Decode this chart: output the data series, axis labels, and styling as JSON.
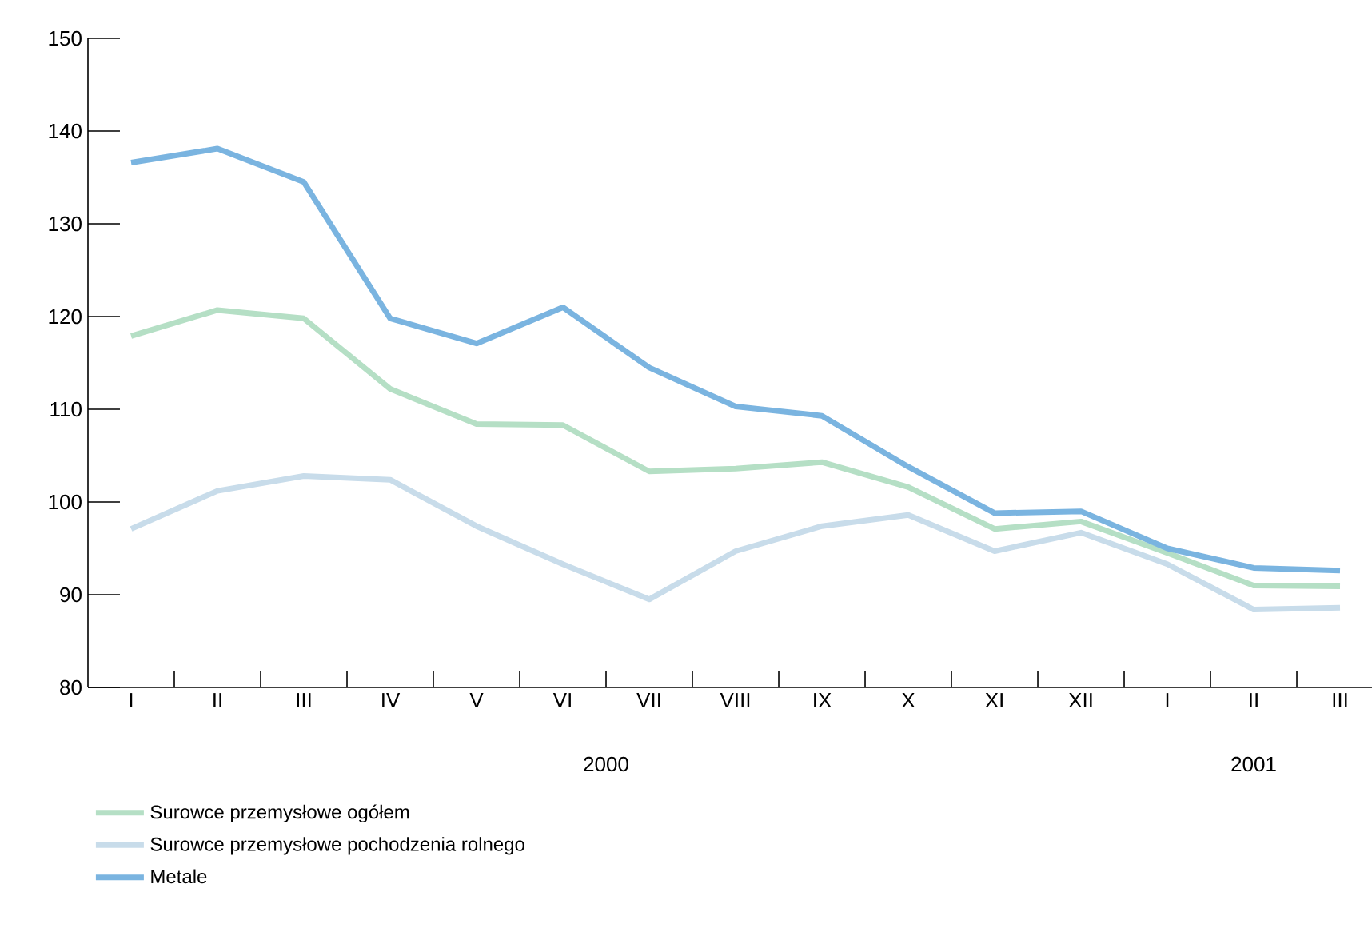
{
  "chart_data": {
    "type": "line",
    "categories": [
      "I",
      "II",
      "III",
      "IV",
      "V",
      "VI",
      "VII",
      "VIII",
      "IX",
      "X",
      "XI",
      "XII",
      "I",
      "II",
      "III"
    ],
    "series": [
      {
        "name": "Surowce przemysłowe ogółem",
        "color": "#b5dfc5",
        "values": [
          117.9,
          120.7,
          119.8,
          112.2,
          108.4,
          108.3,
          103.3,
          103.6,
          104.3,
          101.6,
          97.1,
          97.9,
          94.5,
          91.0,
          90.9
        ]
      },
      {
        "name": "Surowce przemysłowe pochodzenia rolnego",
        "color": "#c8dcea",
        "values": [
          97.1,
          101.2,
          102.8,
          102.4,
          97.4,
          93.3,
          89.5,
          94.7,
          97.4,
          98.6,
          94.7,
          96.7,
          93.3,
          88.4,
          88.6
        ]
      },
      {
        "name": "Metale",
        "color": "#7ab4e0",
        "values": [
          136.6,
          138.1,
          134.5,
          119.8,
          117.1,
          121.0,
          114.5,
          110.3,
          109.3,
          103.8,
          98.8,
          99.0,
          95.0,
          92.9,
          92.6
        ]
      }
    ],
    "ylim": [
      80,
      150
    ],
    "yticks": [
      80,
      90,
      100,
      110,
      120,
      130,
      140,
      150
    ],
    "annotations": [
      "2000",
      "2001"
    ],
    "legend": "bottom",
    "grid": false,
    "marker": "none",
    "line_style": "solid"
  }
}
